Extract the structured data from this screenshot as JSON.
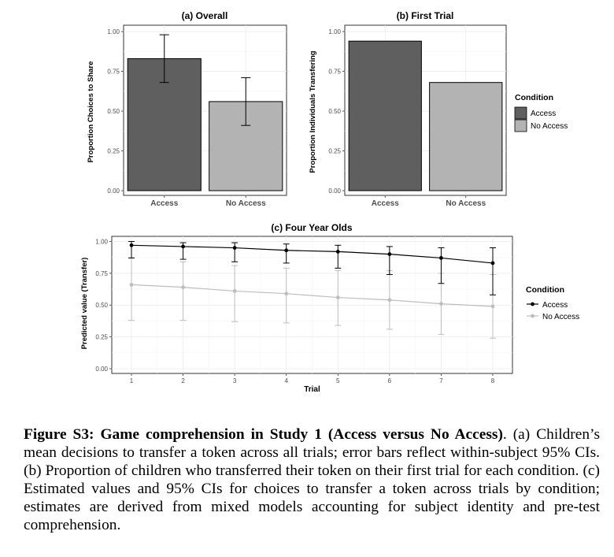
{
  "chart_data": [
    {
      "type": "bar",
      "title": "(a) Overall",
      "ylabel": "Proportion Choices to Share",
      "xlabel": "",
      "categories": [
        "Access",
        "No Access"
      ],
      "values": [
        0.83,
        0.56
      ],
      "error_low": [
        0.68,
        0.41
      ],
      "error_high": [
        0.98,
        0.71
      ],
      "ylim": [
        0,
        1
      ],
      "yticks": [
        "0.00",
        "0.25",
        "0.50",
        "0.75",
        "1.00"
      ],
      "colors": [
        "#5f5f5f",
        "#b3b3b3"
      ],
      "grid": true
    },
    {
      "type": "bar",
      "title": "(b) First Trial",
      "ylabel": "Proportion Individuals Transfering",
      "xlabel": "",
      "categories": [
        "Access",
        "No Access"
      ],
      "values": [
        0.94,
        0.68
      ],
      "ylim": [
        0,
        1
      ],
      "yticks": [
        "0.00",
        "0.25",
        "0.50",
        "0.75",
        "1.00"
      ],
      "colors": [
        "#5f5f5f",
        "#b3b3b3"
      ],
      "grid": true,
      "legend": {
        "title": "Condition",
        "placement": "right",
        "items": [
          {
            "label": "Access",
            "color": "#5f5f5f"
          },
          {
            "label": "No Access",
            "color": "#b3b3b3"
          }
        ]
      }
    },
    {
      "type": "line",
      "title": "(c) Four Year Olds",
      "xlabel": "Trial",
      "ylabel": "Predicted value (Transfer)",
      "x": [
        1,
        2,
        3,
        4,
        5,
        6,
        7,
        8
      ],
      "xticks": [
        "1",
        "2",
        "3",
        "4",
        "5",
        "6",
        "7",
        "8"
      ],
      "ylim": [
        0,
        1
      ],
      "yticks": [
        "0.00",
        "0.25",
        "0.50",
        "0.75",
        "1.00"
      ],
      "grid": true,
      "series": [
        {
          "name": "Access",
          "color": "#000000",
          "values": [
            0.97,
            0.96,
            0.95,
            0.93,
            0.92,
            0.9,
            0.87,
            0.83
          ],
          "error_low": [
            0.87,
            0.86,
            0.84,
            0.83,
            0.79,
            0.74,
            0.67,
            0.58
          ],
          "error_high": [
            1.0,
            0.99,
            0.99,
            0.98,
            0.97,
            0.96,
            0.95,
            0.95
          ]
        },
        {
          "name": "No Access",
          "color": "#bdbdbd",
          "values": [
            0.66,
            0.64,
            0.61,
            0.59,
            0.56,
            0.54,
            0.51,
            0.49
          ],
          "error_low": [
            0.38,
            0.38,
            0.37,
            0.36,
            0.34,
            0.31,
            0.27,
            0.24
          ],
          "error_high": [
            0.87,
            0.84,
            0.81,
            0.79,
            0.77,
            0.77,
            0.75,
            0.74
          ]
        }
      ],
      "legend": {
        "title": "Condition",
        "placement": "right",
        "items": [
          {
            "label": "Access",
            "color": "#000000"
          },
          {
            "label": "No Access",
            "color": "#bdbdbd"
          }
        ]
      }
    }
  ],
  "caption": {
    "bold": "Figure S3: Game comprehension in Study 1 (Access versus No Access)",
    "text": ". (a) Children’s mean decisions to transfer a token across all trials; error bars reflect within-subject 95% CIs. (b) Proportion of children who transferred their token on their first trial for each condition. (c) Estimated values and 95% CIs for choices to transfer a token across trials by condition; estimates are derived from mixed models accounting for subject identity and pre-test comprehension."
  }
}
